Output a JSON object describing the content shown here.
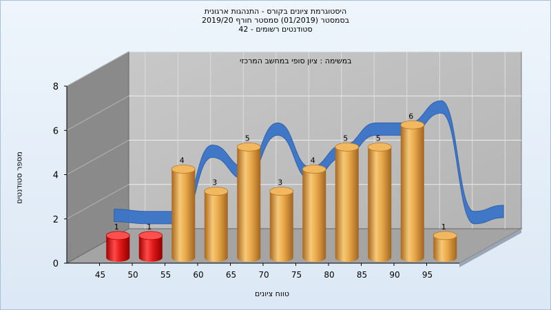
{
  "titles": {
    "line1": "היסטוגרמת ציונים בקורס - התנהגות ארגונית",
    "line2": "בסמסטר  (01/2019)  סמסטר חורף 2019/20",
    "line3": "סטודנטים רשומים - 42"
  },
  "chart_data": {
    "type": "bar",
    "title": "במשימה : ציון סופי במחשב המרכזי",
    "xlabel": "טווח ציונים",
    "ylabel": "מספר סטודנטים",
    "categories": [
      "45",
      "50",
      "55",
      "60",
      "65",
      "70",
      "75",
      "80",
      "85",
      "90",
      "95"
    ],
    "bars": [
      {
        "label": "45-50",
        "value": 1,
        "color": "red"
      },
      {
        "label": "50-55",
        "value": 1,
        "color": "red"
      },
      {
        "label": "55-60",
        "value": 4,
        "color": "gold"
      },
      {
        "label": "60-65",
        "value": 3,
        "color": "gold"
      },
      {
        "label": "65-70",
        "value": 5,
        "color": "gold"
      },
      {
        "label": "70-75",
        "value": 3,
        "color": "gold"
      },
      {
        "label": "75-80",
        "value": 4,
        "color": "gold"
      },
      {
        "label": "80-85",
        "value": 5,
        "color": "gold"
      },
      {
        "label": "85-90",
        "value": 5,
        "color": "gold"
      },
      {
        "label": "90-95",
        "value": 6,
        "color": "gold"
      },
      {
        "label": "95-100",
        "value": 1,
        "color": "gold"
      }
    ],
    "ylim": [
      0,
      8
    ],
    "yticks": [
      0,
      2,
      4,
      6,
      8
    ],
    "grid": true,
    "colors": {
      "fail": "#e01818",
      "pass": "#e8a848",
      "curve": "#3a74c8",
      "wall": "#bcbcbc",
      "floor": "#a4a4a4",
      "sidewall": "#888888"
    }
  }
}
